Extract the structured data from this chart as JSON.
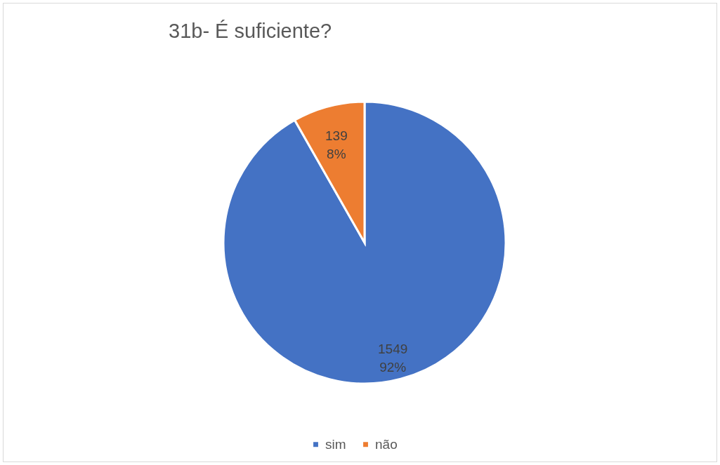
{
  "chart_data": {
    "type": "pie",
    "title": "31b- É suficiente?",
    "categories": [
      "sim",
      "não"
    ],
    "values": [
      1549,
      139
    ],
    "colors": [
      "#4472c4",
      "#ed7d31"
    ],
    "value_labels": [
      "1549\n92%",
      "139\n8%"
    ],
    "legend": "bottom"
  }
}
